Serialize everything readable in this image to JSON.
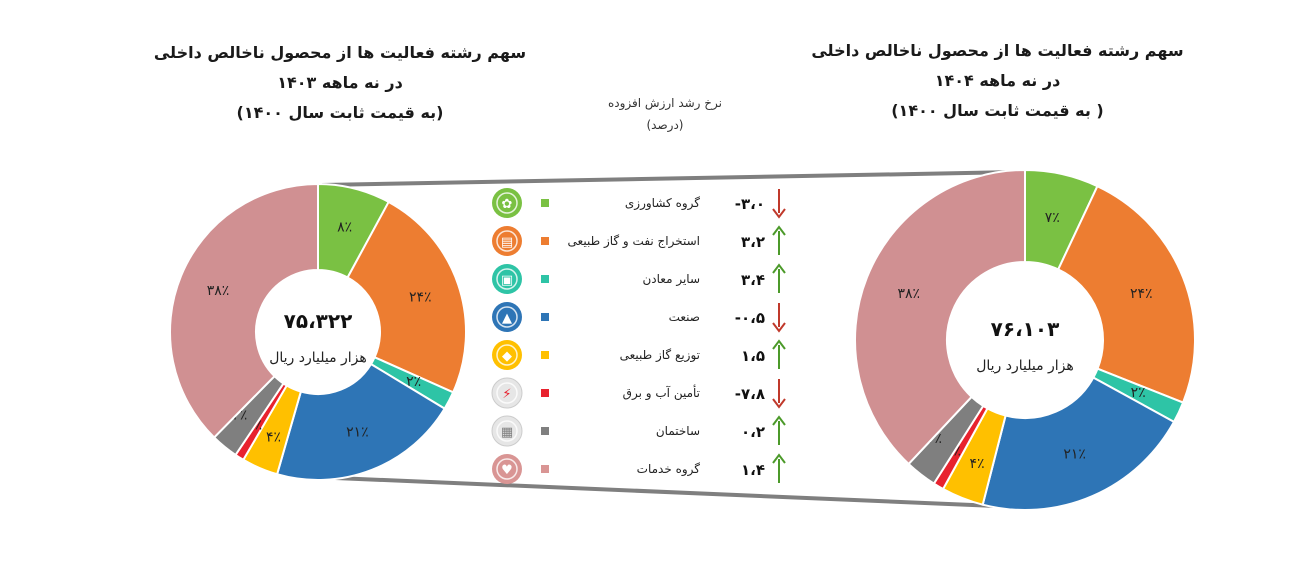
{
  "titles": {
    "left": [
      "سهم رشته فعالیت ها از محصول ناخالص داخلی",
      "در نه ماهه ۱۴۰۳",
      "(به قیمت ثابت سال ۱۴۰۰)"
    ],
    "right": [
      "سهم رشته فعالیت ها از محصول ناخالص داخلی",
      "در نه ماهه ۱۴۰۴",
      "( به قیمت ثابت سال ۱۴۰۰)"
    ]
  },
  "middle_header": {
    "line1": "نرخ رشد ارزش افزوده",
    "line2": "(درصد)"
  },
  "chart_data": [
    {
      "type": "pie",
      "donut": true,
      "id": "left",
      "categories": [
        "گروه کشاورزی",
        "استخراج نفت و گاز طبیعی",
        "سایر معادن",
        "صنعت",
        "توزیع گاز طبیعی",
        "تأمین آب و برق",
        "ساختمان",
        "گروه خدمات"
      ],
      "values": [
        8,
        24,
        2,
        21,
        4,
        1,
        3,
        38
      ],
      "value_labels": [
        "۸٪",
        "۲۴٪",
        "۲٪",
        "۲۱٪",
        "۴٪",
        "۱٪",
        "۳٪",
        "۳۸٪"
      ],
      "center_total": "۷۵،۳۲۲",
      "center_unit": "هزار میلیارد ریال",
      "title": "سهم رشته فعالیت ها از محصول ناخالص داخلی در نه ماهه ۱۴۰۳ (به قیمت ثابت سال ۱۴۰۰)"
    },
    {
      "type": "pie",
      "donut": true,
      "id": "right",
      "categories": [
        "گروه کشاورزی",
        "استخراج نفت و گاز طبیعی",
        "سایر معادن",
        "صنعت",
        "توزیع گاز طبیعی",
        "تأمین آب و برق",
        "ساختمان",
        "گروه خدمات"
      ],
      "values": [
        7,
        24,
        2,
        21,
        4,
        1,
        3,
        38
      ],
      "value_labels": [
        "۷٪",
        "۲۴٪",
        "۲٪",
        "۲۱٪",
        "۴٪",
        "۱٪",
        "۳٪",
        "۳۸٪"
      ],
      "center_total": "۷۶،۱۰۳",
      "center_unit": "هزار میلیارد ریال",
      "title": "سهم رشته فعالیت ها از محصول ناخالص داخلی در نه ماهه ۱۴۰۴ ( به قیمت ثابت سال ۱۴۰۰)"
    },
    {
      "type": "table",
      "id": "growth-rates",
      "title": "نرخ رشد ارزش افزوده (درصد)",
      "categories": [
        "گروه کشاورزی",
        "استخراج نفت و گاز طبیعی",
        "سایر معادن",
        "صنعت",
        "توزیع گاز طبیعی",
        "تأمین آب و برق",
        "ساختمان",
        "گروه خدمات"
      ],
      "values": [
        -3.0,
        3.2,
        3.4,
        -0.5,
        1.5,
        -7.8,
        0.2,
        1.4
      ],
      "value_labels": [
        "-۳،۰",
        "۳،۲",
        "۳،۴",
        "-۰،۵",
        "۱،۵",
        "-۷،۸",
        "۰،۲",
        "۱،۴"
      ],
      "direction": [
        "down",
        "up",
        "up",
        "down",
        "up",
        "down",
        "up",
        "up"
      ]
    }
  ],
  "legend": [
    {
      "label": "گروه کشاورزی",
      "color": "#7ac143",
      "icon": "wheat-icon"
    },
    {
      "label": "استخراج نفت و گاز طبیعی",
      "color": "#ed7d31",
      "icon": "oil-barrels-icon"
    },
    {
      "label": "سایر معادن",
      "color": "#2ec4a6",
      "icon": "mine-cart-icon"
    },
    {
      "label": "صنعت",
      "color": "#2e75b6",
      "icon": "factory-icon"
    },
    {
      "label": "توزیع گاز طبیعی",
      "color": "#ffc000",
      "icon": "gas-flame-icon"
    },
    {
      "label": "تأمین آب و برق",
      "color": "#e8222e",
      "icon": "power-plug-icon"
    },
    {
      "label": "ساختمان",
      "color": "#7f7f7f",
      "icon": "building-icon"
    },
    {
      "label": "گروه خدمات",
      "color": "#d99594",
      "icon": "services-hand-icon"
    }
  ],
  "colors": {
    "slices": [
      "#7ac143",
      "#ed7d31",
      "#2ec4a6",
      "#2e75b6",
      "#ffc000",
      "#e8222e",
      "#7f7f7f",
      "#d09092"
    ],
    "arrow_up": "#4c9a2a",
    "arrow_down": "#c0392b"
  }
}
